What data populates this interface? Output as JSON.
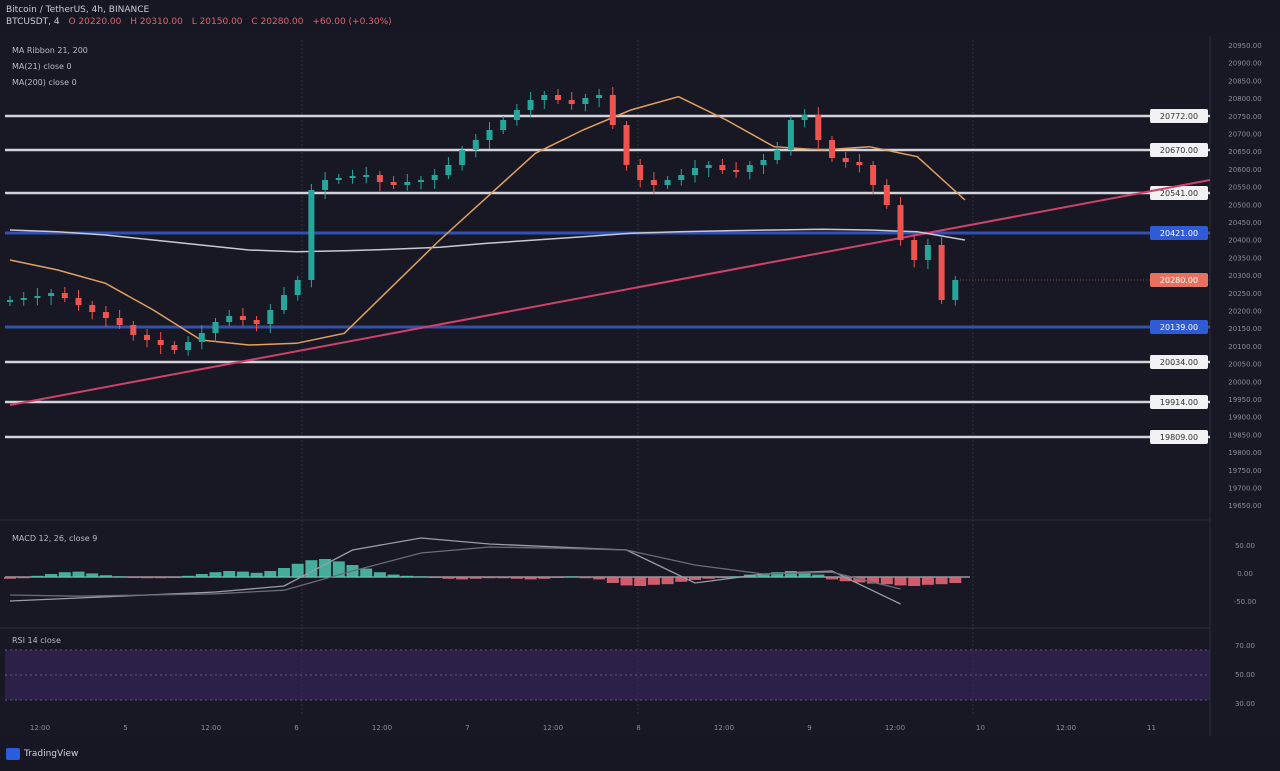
{
  "header": {
    "line1": "Bitcoin / TetherUS, 4h, BINANCE",
    "line2_symbol": "BTCUSDT, 4",
    "line2_ohlc": [
      "O 20220.00",
      "H 20310.00",
      "L 20150.00",
      "C 20280.00",
      "+60.00 (+0.30%)"
    ]
  },
  "legends": {
    "ma_ribbon": "MA Ribbon 21, 200",
    "ma21": "MA(21) close 0",
    "ma200": "MA(200) close 0",
    "macd": "MACD 12, 26, close 9",
    "rsi": "RSI 14 close"
  },
  "footer": {
    "brand": "TradingView"
  },
  "colors": {
    "background": "#161722",
    "up": "#26a69a",
    "down": "#ef5350",
    "ma21": "#e0a060",
    "ma200": "#c8c8d0",
    "trendline": "#d0406a",
    "support_blue": "#3a5fd0",
    "rsi_band": "#3a2460"
  },
  "chart_data": [
    {
      "type": "candlestick",
      "title": "",
      "price_axis_labels": [
        "20950.00",
        "20900.00",
        "20850.00",
        "20800.00",
        "20750.00",
        "20700.00",
        "20650.00",
        "20600.00",
        "20550.00",
        "20500.00",
        "20450.00",
        "20400.00",
        "20350.00",
        "20300.00",
        "20250.00",
        "20200.00",
        "20150.00",
        "20100.00",
        "20050.00",
        "20000.00",
        "19950.00",
        "19900.00",
        "19850.00",
        "19800.00",
        "19750.00",
        "19700.00",
        "19650.00"
      ],
      "closes": [
        20220,
        20226,
        20232,
        20241,
        20226,
        20205,
        20184,
        20166,
        20145,
        20115,
        20100,
        20085,
        20070,
        20094,
        20121,
        20154,
        20172,
        20160,
        20148,
        20190,
        20235,
        20280,
        20550,
        20580,
        20586,
        20592,
        20595,
        20574,
        20565,
        20574,
        20580,
        20595,
        20625,
        20670,
        20700,
        20730,
        20760,
        20790,
        20820,
        20835,
        20820,
        20808,
        20826,
        20835,
        20745,
        20625,
        20580,
        20565,
        20580,
        20595,
        20616,
        20625,
        20610,
        20604,
        20625,
        20640,
        20670,
        20760,
        20775,
        20700,
        20646,
        20634,
        20625,
        20565,
        20505,
        20400,
        20340,
        20385,
        20220,
        20280
      ],
      "ma21": [
        20340,
        20310,
        20270,
        20190,
        20100,
        20085,
        20090,
        20120,
        20260,
        20400,
        20530,
        20660,
        20730,
        20790,
        20830,
        20760,
        20680,
        20670,
        20680,
        20650,
        20520
      ],
      "ma200": [
        20430,
        20425,
        20415,
        20400,
        20385,
        20370,
        20365,
        20368,
        20372,
        20378,
        20390,
        20400,
        20410,
        20420,
        20425,
        20428,
        20430,
        20432,
        20430,
        20425,
        20400
      ],
      "horizontal_levels": [
        {
          "price": 20772,
          "label": "20772.00",
          "color": "white"
        },
        {
          "price": 20670,
          "label": "20670.00",
          "color": "white"
        },
        {
          "price": 20541,
          "label": "20541.00",
          "color": "white"
        },
        {
          "price": 20421,
          "label": "20421.00",
          "color": "blue"
        },
        {
          "price": 20139,
          "label": "20139.00",
          "color": "blue"
        },
        {
          "price": 20034,
          "label": "20034.00",
          "color": "white"
        },
        {
          "price": 19914,
          "label": "19914.00",
          "color": "white"
        },
        {
          "price": 19809,
          "label": "19809.00",
          "color": "white"
        }
      ],
      "last_price": {
        "price": 20280,
        "label": "20280.00"
      },
      "trendline": {
        "from_price": 19905,
        "to_price": 20580
      }
    },
    {
      "type": "bar",
      "title": "MACD",
      "axis_labels": [
        "50.00",
        "0.00",
        "-50.00"
      ],
      "histogram": [
        -3,
        -2,
        2,
        5,
        8,
        9,
        6,
        3,
        1,
        -1,
        -2,
        -2,
        -1,
        2,
        5,
        8,
        10,
        9,
        7,
        10,
        15,
        22,
        28,
        30,
        26,
        20,
        14,
        8,
        4,
        2,
        1,
        -1,
        -3,
        -4,
        -3,
        -2,
        -2,
        -3,
        -4,
        -3,
        -1,
        1,
        -2,
        -4,
        -10,
        -14,
        -15,
        -13,
        -12,
        -8,
        -5,
        -3,
        -1,
        1,
        4,
        6,
        8,
        10,
        9,
        4,
        -4,
        -7,
        -9,
        -11,
        -12,
        -14,
        -15,
        -13,
        -12,
        -10
      ],
      "macd_line": [
        -40,
        -35,
        -30,
        -25,
        -15,
        45,
        65,
        55,
        50,
        45,
        -10,
        5,
        10,
        -45
      ],
      "signal_line": [
        -30,
        -32,
        -30,
        -28,
        -22,
        10,
        40,
        50,
        48,
        45,
        20,
        5,
        8,
        -20
      ]
    },
    {
      "type": "line",
      "title": "RSI",
      "axis_labels": [
        "70.00",
        "50.00",
        "30.00"
      ]
    }
  ],
  "time_axis": [
    "12:00",
    "5",
    "12:00",
    "6",
    "12:00",
    "7",
    "12:00",
    "8",
    "12:00",
    "9",
    "12:00",
    "10",
    "12:00",
    "11"
  ]
}
